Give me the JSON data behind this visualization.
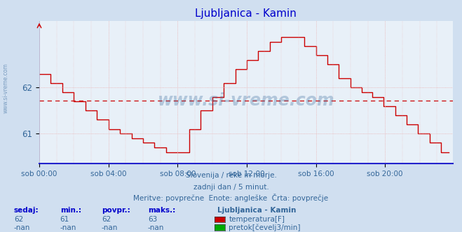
{
  "title": "Ljubljanica - Kamin",
  "bg_color": "#d0dff0",
  "plot_bg_color": "#e8f0f8",
  "line_color": "#cc0000",
  "avg_line_color": "#cc0000",
  "grid_color": "#e8aaaa",
  "axis_color": "#0000cc",
  "text_color": "#336699",
  "x_labels": [
    "sob 00:00",
    "sob 04:00",
    "sob 08:00",
    "sob 12:00",
    "sob 16:00",
    "sob 20:00"
  ],
  "x_ticks": [
    0,
    48,
    96,
    144,
    192,
    240
  ],
  "y_ticks": [
    61,
    62
  ],
  "ylim": [
    60.35,
    63.45
  ],
  "xlim": [
    0,
    287
  ],
  "avg_value": 61.72,
  "subtitle1": "Slovenija / reke in morje.",
  "subtitle2": "zadnji dan / 5 minut.",
  "subtitle3": "Meritve: povprečne  Enote: angleške  Črta: povprečje",
  "legend_title": "Ljubljanica - Kamin",
  "legend_items": [
    {
      "label": "temperatura[F]",
      "color": "#cc0000"
    },
    {
      "label": "pretok[čevelj3/min]",
      "color": "#00aa00"
    }
  ],
  "table_headers": [
    "sedaj:",
    "min.:",
    "povpr.:",
    "maks.:"
  ],
  "table_row1": [
    "62",
    "61",
    "62",
    "63"
  ],
  "table_row2": [
    "-nan",
    "-nan",
    "-nan",
    "-nan"
  ],
  "watermark": "www.si-vreme.com",
  "temperature_data": [
    62.3,
    62.3,
    62.3,
    62.3,
    62.3,
    62.3,
    62.3,
    62.3,
    62.1,
    62.1,
    62.1,
    62.1,
    62.1,
    62.1,
    62.1,
    62.1,
    61.9,
    61.9,
    61.9,
    61.9,
    61.9,
    61.9,
    61.9,
    61.9,
    61.7,
    61.7,
    61.7,
    61.7,
    61.7,
    61.7,
    61.7,
    61.7,
    61.5,
    61.5,
    61.5,
    61.5,
    61.5,
    61.5,
    61.5,
    61.5,
    61.3,
    61.3,
    61.3,
    61.3,
    61.3,
    61.3,
    61.3,
    61.3,
    61.1,
    61.1,
    61.1,
    61.1,
    61.1,
    61.1,
    61.1,
    61.1,
    61.0,
    61.0,
    61.0,
    61.0,
    61.0,
    61.0,
    61.0,
    61.0,
    60.9,
    60.9,
    60.9,
    60.9,
    60.9,
    60.9,
    60.9,
    60.9,
    60.8,
    60.8,
    60.8,
    60.8,
    60.8,
    60.8,
    60.8,
    60.8,
    60.7,
    60.7,
    60.7,
    60.7,
    60.7,
    60.7,
    60.7,
    60.7,
    60.6,
    60.6,
    60.6,
    60.6,
    60.6,
    60.6,
    60.6,
    60.6,
    60.6,
    60.6,
    60.6,
    60.6,
    60.6,
    60.6,
    60.6,
    60.6,
    61.1,
    61.1,
    61.1,
    61.1,
    61.1,
    61.1,
    61.1,
    61.1,
    61.5,
    61.5,
    61.5,
    61.5,
    61.5,
    61.5,
    61.5,
    61.5,
    61.8,
    61.8,
    61.8,
    61.8,
    61.8,
    61.8,
    61.8,
    61.8,
    62.1,
    62.1,
    62.1,
    62.1,
    62.1,
    62.1,
    62.1,
    62.1,
    62.4,
    62.4,
    62.4,
    62.4,
    62.4,
    62.4,
    62.4,
    62.4,
    62.6,
    62.6,
    62.6,
    62.6,
    62.6,
    62.6,
    62.6,
    62.6,
    62.8,
    62.8,
    62.8,
    62.8,
    62.8,
    62.8,
    62.8,
    62.8,
    63.0,
    63.0,
    63.0,
    63.0,
    63.0,
    63.0,
    63.0,
    63.0,
    63.1,
    63.1,
    63.1,
    63.1,
    63.1,
    63.1,
    63.1,
    63.1,
    63.1,
    63.1,
    63.1,
    63.1,
    63.1,
    63.1,
    63.1,
    63.1,
    62.9,
    62.9,
    62.9,
    62.9,
    62.9,
    62.9,
    62.9,
    62.9,
    62.7,
    62.7,
    62.7,
    62.7,
    62.7,
    62.7,
    62.7,
    62.7,
    62.5,
    62.5,
    62.5,
    62.5,
    62.5,
    62.5,
    62.5,
    62.5,
    62.2,
    62.2,
    62.2,
    62.2,
    62.2,
    62.2,
    62.2,
    62.2,
    62.0,
    62.0,
    62.0,
    62.0,
    62.0,
    62.0,
    62.0,
    62.0,
    61.9,
    61.9,
    61.9,
    61.9,
    61.9,
    61.9,
    61.9,
    61.8,
    61.8,
    61.8,
    61.8,
    61.8,
    61.8,
    61.8,
    61.8,
    61.6,
    61.6,
    61.6,
    61.6,
    61.6,
    61.6,
    61.6,
    61.6,
    61.4,
    61.4,
    61.4,
    61.4,
    61.4,
    61.4,
    61.4,
    61.4,
    61.2,
    61.2,
    61.2,
    61.2,
    61.2,
    61.2,
    61.2,
    61.2,
    61.0,
    61.0,
    61.0,
    61.0,
    61.0,
    61.0,
    61.0,
    61.0,
    60.8,
    60.8,
    60.8,
    60.8,
    60.8,
    60.8,
    60.8,
    60.8,
    60.6,
    60.6,
    60.6,
    60.6,
    60.6,
    60.6
  ]
}
